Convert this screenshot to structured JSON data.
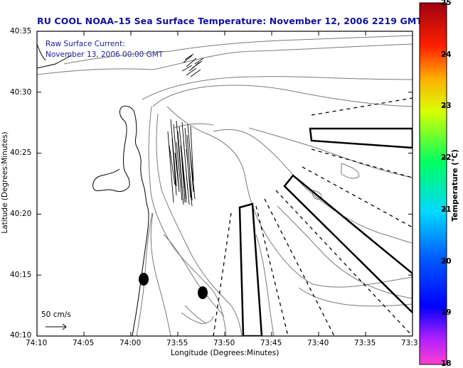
{
  "title": "RU COOL  NOAA–15  Sea Surface Temperature:  November 12, 2006 2219 GMT",
  "current_note": {
    "line1": "Raw Surface Current:",
    "line2": "November 13, 2006 00:00 GMT"
  },
  "axes": {
    "x_label": "Longitude (Degrees:Minutes)",
    "y_label": "Latitude (Degrees:Minutes)",
    "x_ticks": [
      "74:10",
      "74:05",
      "74:00",
      "73:55",
      "73:50",
      "73:45",
      "73:40",
      "73:35",
      "73:3"
    ],
    "y_ticks": [
      "40:35",
      "40:30",
      "40:25",
      "40:20",
      "40:15",
      "40:10"
    ]
  },
  "colorbar": {
    "label": "Temperature (°C)",
    "ticks": [
      "25",
      "24",
      "23",
      "22",
      "21",
      "20",
      "19",
      "18"
    ],
    "min": 18,
    "max": 25
  },
  "scale_vector": {
    "label": "50 cm/s"
  },
  "colors": {
    "title": "#1010a0",
    "note": "#1a1a9a",
    "contour": "#7a7a7a",
    "coast": "#000000"
  }
}
